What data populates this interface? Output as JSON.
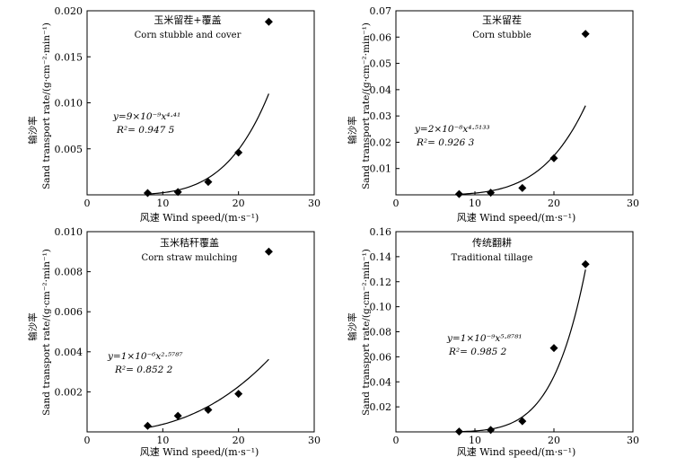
{
  "figure": {
    "panels": [
      {
        "title_cn": "玉米留茬+覆盖",
        "title_en": "Corn stubble and cover",
        "xlabel": "风速 Wind speed/(m·s⁻¹)",
        "ylabel_cn": "输沙率",
        "ylabel_en": "Sand transport rate/(g·cm⁻²·min⁻¹)",
        "equation": "y=9×10⁻⁹x⁴·⁴¹",
        "r2": "R²= 0.947 5"
      },
      {
        "title_cn": "玉米留茬",
        "title_en": "Corn stubble",
        "xlabel": "风速 Wind speed/(m·s⁻¹)",
        "ylabel_cn": "输沙率",
        "ylabel_en": "Sand transport rate/(g·cm⁻²·min⁻¹)",
        "equation": "y=2×10⁻⁸x⁴·⁵¹³³",
        "r2": "R²= 0.926 3"
      },
      {
        "title_cn": "玉米秸秆覆盖",
        "title_en": "Corn straw mulching",
        "xlabel": "风速 Wind speed/(m·s⁻¹)",
        "ylabel_cn": "输沙率",
        "ylabel_en": "Sand transport rate/(g·cm⁻²·min⁻¹)",
        "equation": "y=1×10⁻⁶x²·⁵⁷⁸⁷",
        "r2": "R²= 0.852 2"
      },
      {
        "title_cn": "传统翻耕",
        "title_en": "Traditional tillage",
        "xlabel": "风速 Wind speed/(m·s⁻¹)",
        "ylabel_cn": "输沙率",
        "ylabel_en": "Sand transport rate/(g·cm⁻²·min⁻¹)",
        "equation": "y=1×10⁻⁹x⁵·⁸⁷⁸¹",
        "r2": "R²= 0.985 2"
      }
    ]
  },
  "chart_data": [
    {
      "type": "scatter",
      "title": "玉米留茬+覆盖 Corn stubble and cover",
      "xlabel": "风速 Wind speed/(m·s⁻¹)",
      "ylabel": "输沙率 Sand transport rate/(g·cm⁻²·min⁻¹)",
      "xlim": [
        0,
        30
      ],
      "ylim": [
        0,
        0.02
      ],
      "xticks": [
        "0",
        "10",
        "20",
        "30"
      ],
      "yticks": [
        "0.005",
        "0.010",
        "0.015",
        "0.020"
      ],
      "x": [
        8,
        12,
        16,
        20,
        24
      ],
      "y": [
        0.0002,
        0.0003,
        0.0014,
        0.0046,
        0.0188
      ],
      "fit": {
        "coef": 9e-09,
        "exp": 4.41,
        "x_range": [
          8,
          24
        ]
      },
      "grid": false,
      "marker": "diamond"
    },
    {
      "type": "scatter",
      "title": "玉米留茬 Corn stubble",
      "xlabel": "风速 Wind speed/(m·s⁻¹)",
      "ylabel": "输沙率 Sand transport rate/(g·cm⁻²·min⁻¹)",
      "xlim": [
        0,
        30
      ],
      "ylim": [
        0,
        0.07
      ],
      "xticks": [
        "0",
        "10",
        "20",
        "30"
      ],
      "yticks": [
        "0.01",
        "0.02",
        "0.03",
        "0.04",
        "0.05",
        "0.06",
        "0.07"
      ],
      "x": [
        8,
        12,
        16,
        20,
        24
      ],
      "y": [
        0.0003,
        0.0008,
        0.0026,
        0.0139,
        0.0612
      ],
      "fit": {
        "coef": 2e-08,
        "exp": 4.5133,
        "x_range": [
          8,
          24
        ]
      },
      "grid": false,
      "marker": "diamond"
    },
    {
      "type": "scatter",
      "title": "玉米秸秆覆盖 Corn straw mulching",
      "xlabel": "风速 Wind speed/(m·s⁻¹)",
      "ylabel": "输沙率 Sand transport rate/(g·cm⁻²·min⁻¹)",
      "xlim": [
        0,
        30
      ],
      "ylim": [
        0,
        0.01
      ],
      "xticks": [
        "0",
        "10",
        "20",
        "30"
      ],
      "yticks": [
        "0.002",
        "0.004",
        "0.006",
        "0.008",
        "0.010"
      ],
      "x": [
        8,
        12,
        16,
        20,
        24
      ],
      "y": [
        0.0003,
        0.0008,
        0.0011,
        0.0019,
        0.009
      ],
      "fit": {
        "coef": 1e-06,
        "exp": 2.5787,
        "x_range": [
          8,
          24
        ]
      },
      "grid": false,
      "marker": "diamond"
    },
    {
      "type": "scatter",
      "title": "传统翻耕 Traditional tillage",
      "xlabel": "风速 Wind speed/(m·s⁻¹)",
      "ylabel": "输沙率 Sand transport rate/(g·cm⁻²·min⁻¹)",
      "xlim": [
        0,
        30
      ],
      "ylim": [
        0,
        0.16
      ],
      "xticks": [
        "0",
        "10",
        "20",
        "30"
      ],
      "yticks": [
        "0.02",
        "0.04",
        "0.06",
        "0.08",
        "0.10",
        "0.12",
        "0.14",
        "0.16"
      ],
      "x": [
        8,
        12,
        16,
        20,
        24
      ],
      "y": [
        0.0003,
        0.0015,
        0.0085,
        0.067,
        0.134
      ],
      "fit": {
        "coef": 1e-09,
        "exp": 5.8781,
        "x_range": [
          8,
          24
        ]
      },
      "grid": false,
      "marker": "diamond"
    }
  ]
}
